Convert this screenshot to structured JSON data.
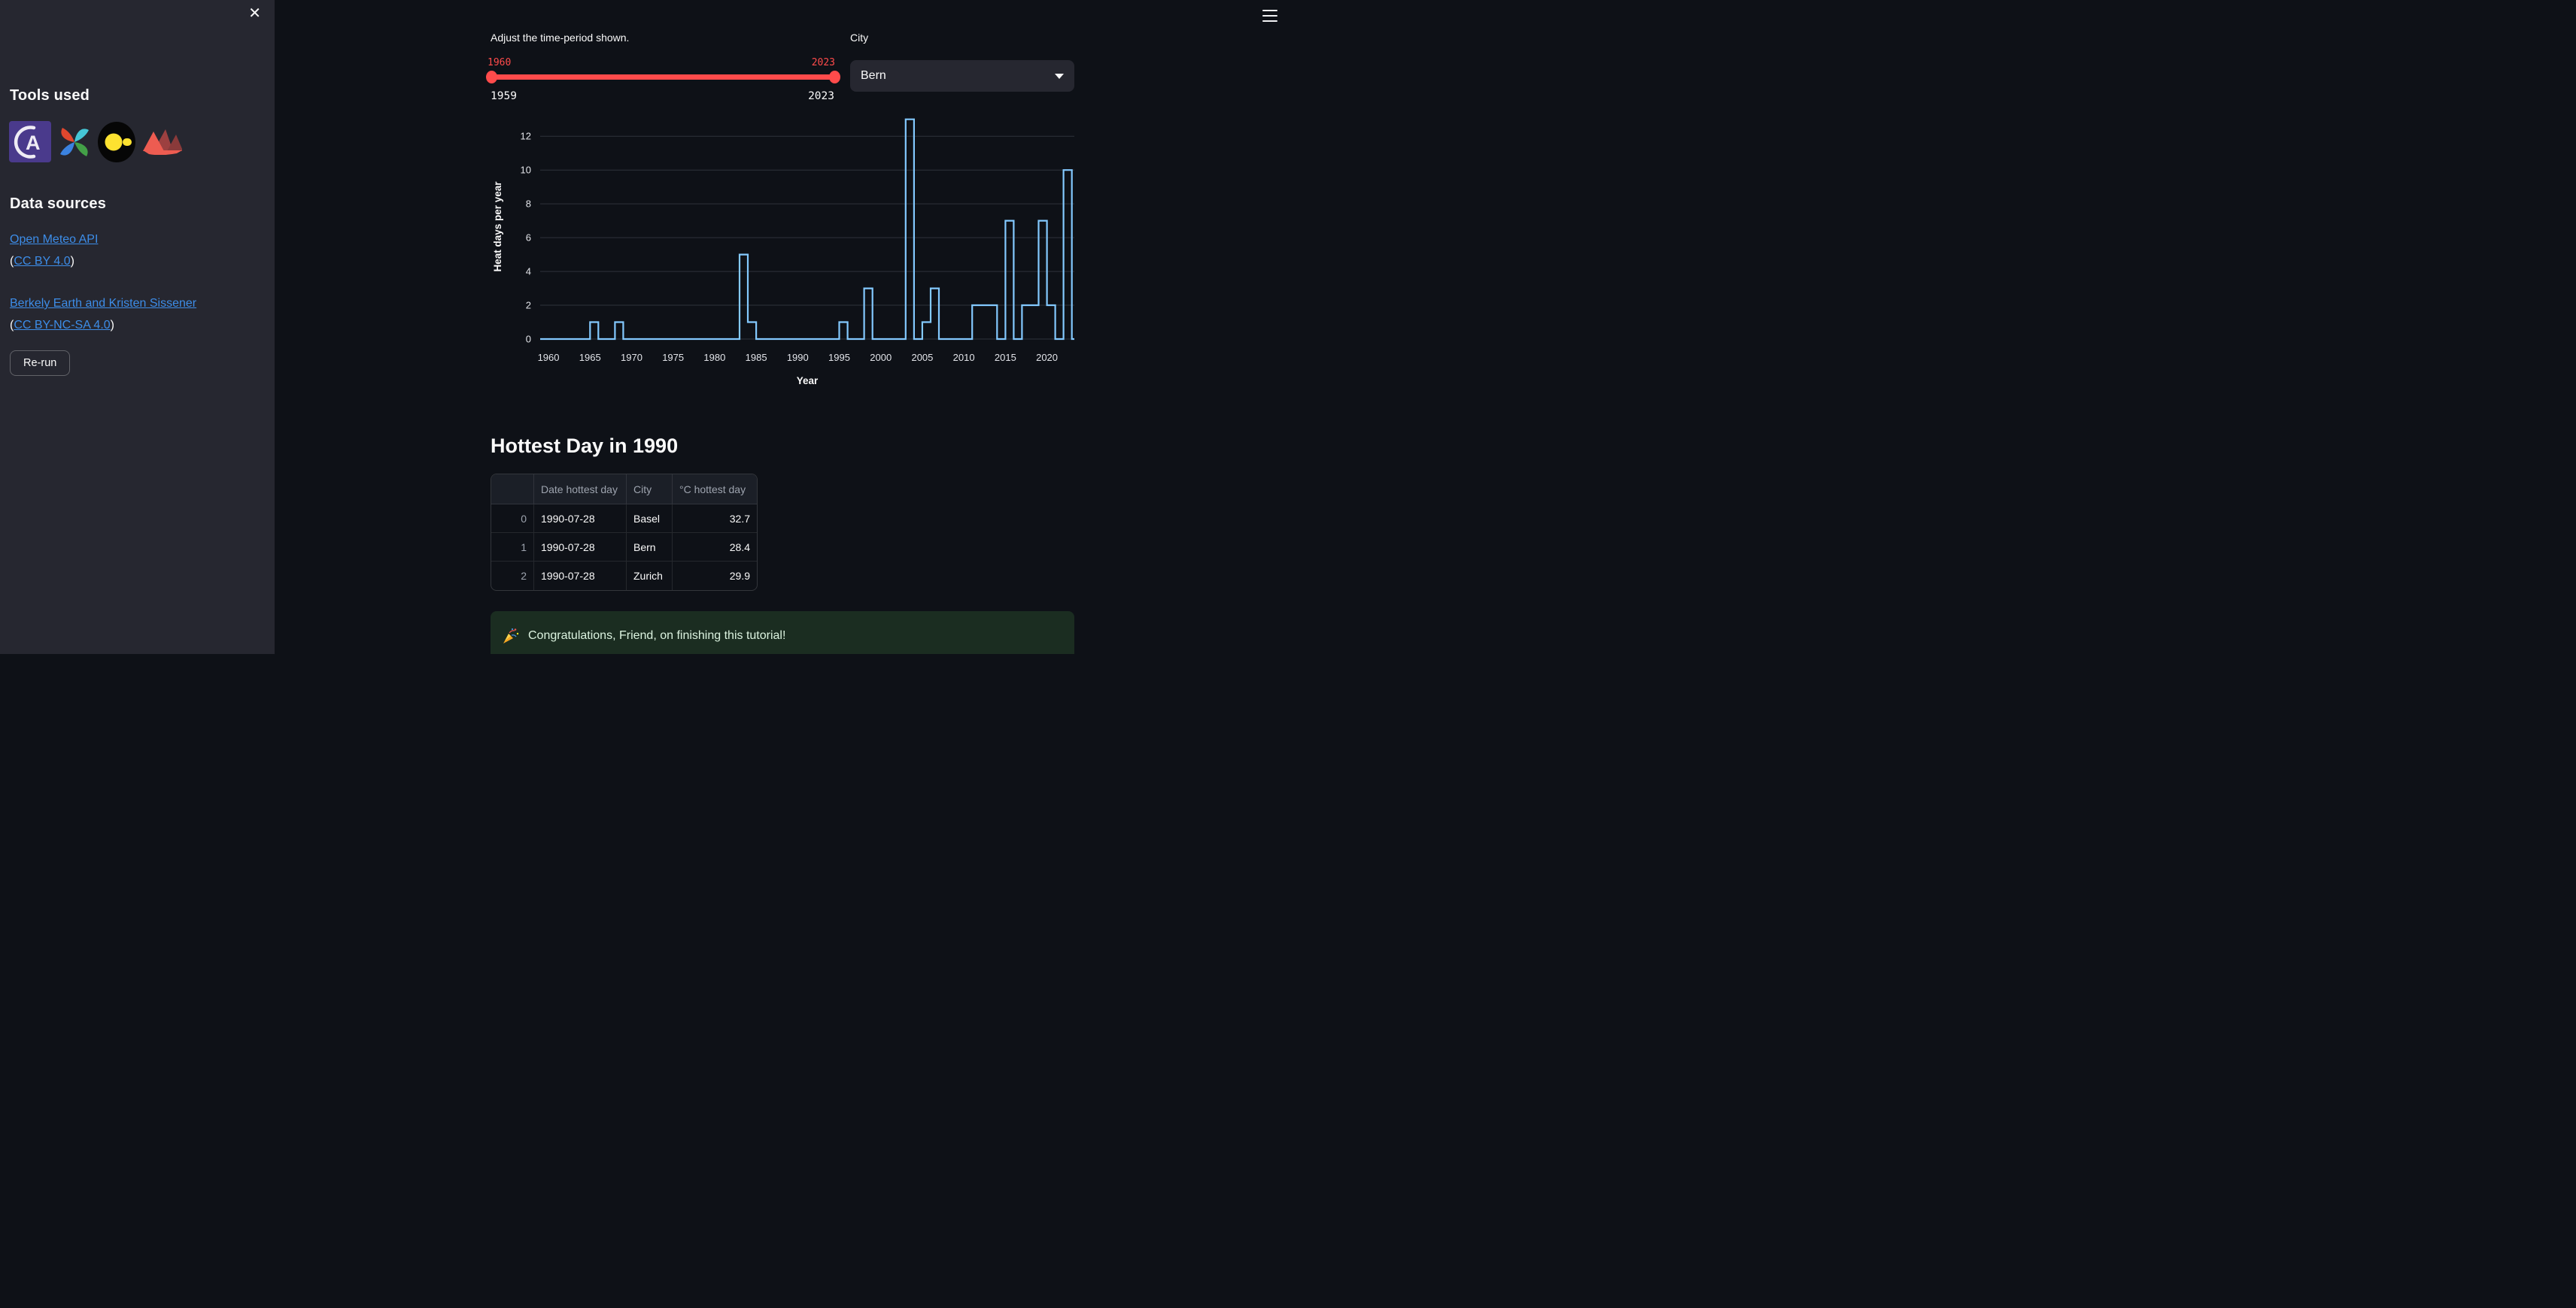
{
  "colors": {
    "background": "#0e1117",
    "sidebar_background": "#262730",
    "accent_red": "#ff4b4b",
    "link_blue": "#3d8de8",
    "chart_line": "#83c9ff",
    "success_background": "#1b2d21",
    "success_text": "#dcf3e0"
  },
  "sidebar": {
    "close_label": "✕",
    "tools_heading": "Tools used",
    "tools": [
      {
        "icon": "arc-a-logo-icon"
      },
      {
        "icon": "pinwheel-logo-icon"
      },
      {
        "icon": "duck-logo-icon"
      },
      {
        "icon": "crown-logo-icon"
      }
    ],
    "data_sources_heading": "Data sources",
    "sources": [
      {
        "link_text": "Open Meteo API",
        "license_open": "(",
        "license_link": "CC BY 4.0",
        "license_close": ")"
      },
      {
        "link_text": "Berkely Earth and Kristen Sissener",
        "license_open": "(",
        "license_link": "CC BY-NC-SA 4.0",
        "license_close": ")"
      }
    ],
    "rerun_label": "Re-run"
  },
  "header": {
    "menu_icon": "hamburger-menu-icon"
  },
  "controls": {
    "slider": {
      "label": "Adjust the time-period shown.",
      "value_low": "1960",
      "value_high": "2023",
      "min_label": "1959",
      "max_label": "2023"
    },
    "city_select": {
      "label": "City",
      "selected": "Bern"
    }
  },
  "chart_data": {
    "type": "line",
    "interpolation": "step-after",
    "title": "",
    "xlabel": "Year",
    "ylabel": "Heat days per year",
    "x_domain": [
      1959,
      2023.3
    ],
    "y_domain": [
      0,
      13.3
    ],
    "x_ticks": [
      1960,
      1965,
      1970,
      1975,
      1980,
      1985,
      1990,
      1995,
      2000,
      2005,
      2010,
      2015,
      2020
    ],
    "y_ticks": [
      0,
      2,
      4,
      6,
      8,
      10,
      12
    ],
    "grid": "horizontal-only",
    "legend": "none",
    "line_color": "#83c9ff",
    "series": [
      {
        "name": "Heat days per year (Bern)",
        "x": [
          1959,
          1960,
          1961,
          1962,
          1963,
          1964,
          1965,
          1966,
          1967,
          1968,
          1969,
          1970,
          1971,
          1972,
          1973,
          1974,
          1975,
          1976,
          1977,
          1978,
          1979,
          1980,
          1981,
          1982,
          1983,
          1984,
          1985,
          1986,
          1987,
          1988,
          1989,
          1990,
          1991,
          1992,
          1993,
          1994,
          1995,
          1996,
          1997,
          1998,
          1999,
          2000,
          2001,
          2002,
          2003,
          2004,
          2005,
          2006,
          2007,
          2008,
          2009,
          2010,
          2011,
          2012,
          2013,
          2014,
          2015,
          2016,
          2017,
          2018,
          2019,
          2020,
          2021,
          2022,
          2023
        ],
        "y": [
          0,
          0,
          0,
          0,
          0,
          0,
          1,
          0,
          0,
          1,
          0,
          0,
          0,
          0,
          0,
          0,
          0,
          0,
          0,
          0,
          0,
          0,
          0,
          0,
          5,
          1,
          0,
          0,
          0,
          0,
          0,
          0,
          0,
          0,
          0,
          0,
          1,
          0,
          0,
          3,
          0,
          0,
          0,
          0,
          13,
          0,
          1,
          3,
          0,
          0,
          0,
          0,
          2,
          2,
          2,
          0,
          7,
          0,
          2,
          2,
          7,
          2,
          0,
          10,
          0
        ]
      }
    ]
  },
  "table_section": {
    "title": "Hottest Day in 1990",
    "columns": [
      "",
      "Date hottest day",
      "City",
      "°C hottest day"
    ],
    "rows": [
      [
        "0",
        "1990-07-28",
        "Basel",
        "32.7"
      ],
      [
        "1",
        "1990-07-28",
        "Bern",
        "28.4"
      ],
      [
        "2",
        "1990-07-28",
        "Zurich",
        "29.9"
      ]
    ]
  },
  "banner": {
    "icon": "party-popper-icon",
    "text": "Congratulations, Friend, on finishing this tutorial!"
  }
}
